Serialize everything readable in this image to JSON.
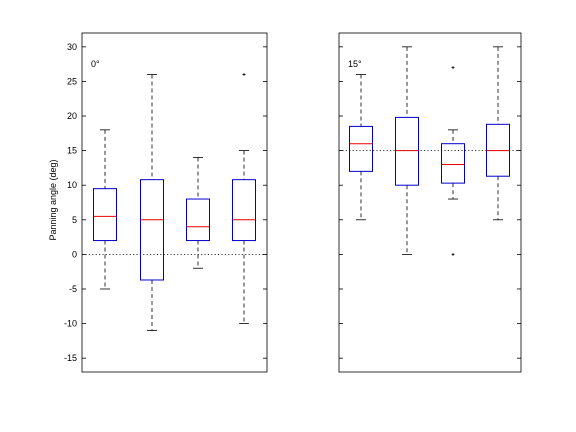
{
  "chart_data": {
    "type": "box",
    "ylabel": "Panning angle (deg)",
    "ylim": [
      -17,
      32
    ],
    "yticks": [
      "-15",
      "-10",
      "-5",
      "0",
      "5",
      "10",
      "15",
      "20",
      "25",
      "30"
    ],
    "panels": [
      {
        "label": "0°",
        "reference_line": 0,
        "boxes": [
          {
            "whisker_low": -5,
            "q1": 2,
            "median": 5.5,
            "q3": 9.5,
            "whisker_high": 18,
            "outliers": []
          },
          {
            "whisker_low": -11,
            "q1": -3.7,
            "median": 5,
            "q3": 10.8,
            "whisker_high": 26,
            "outliers": []
          },
          {
            "whisker_low": -2,
            "q1": 2,
            "median": 4,
            "q3": 8,
            "whisker_high": 14,
            "outliers": []
          },
          {
            "whisker_low": -10,
            "q1": 2,
            "median": 5,
            "q3": 10.8,
            "whisker_high": 15,
            "outliers": [
              26
            ]
          }
        ]
      },
      {
        "label": "15°",
        "reference_line": 15,
        "boxes": [
          {
            "whisker_low": 5,
            "q1": 12,
            "median": 16,
            "q3": 18.5,
            "whisker_high": 26,
            "outliers": []
          },
          {
            "whisker_low": 0,
            "q1": 10,
            "median": 15,
            "q3": 19.8,
            "whisker_high": 30,
            "outliers": []
          },
          {
            "whisker_low": 8,
            "q1": 10.3,
            "median": 13,
            "q3": 16,
            "whisker_high": 18,
            "outliers": [
              27,
              0
            ]
          },
          {
            "whisker_low": 5,
            "q1": 11.3,
            "median": 15,
            "q3": 18.8,
            "whisker_high": 30,
            "outliers": []
          }
        ]
      }
    ]
  }
}
